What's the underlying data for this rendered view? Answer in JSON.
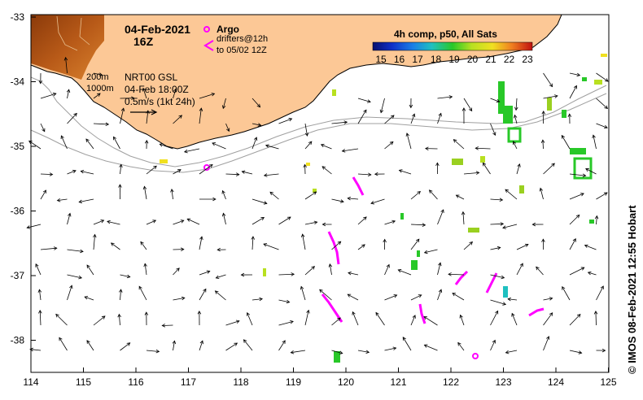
{
  "map": {
    "date": "04-Feb-2021",
    "hour": "16Z",
    "legend": {
      "argo_label": "Argo",
      "drifters_line1": "drifters@12h",
      "drifters_line2": "to 05/02 12Z"
    },
    "contours": {
      "c200": "200m",
      "c1000": "1000m"
    },
    "product": {
      "line1": "NRT00 GSL",
      "line2": "04-Feb 18:00Z",
      "scale": "0.5m/s (1kt 24h)"
    },
    "colorbar": {
      "title": "4h comp, p50, All Sats",
      "ticks": [
        "15",
        "16",
        "17",
        "18",
        "19",
        "20",
        "21",
        "22",
        "23"
      ]
    },
    "credit": "© IMOS 08-Feb-2021 12:55 Hobart",
    "lon_labels": [
      "114",
      "115",
      "116",
      "117",
      "118",
      "119",
      "120",
      "121",
      "122",
      "123",
      "124",
      "125"
    ],
    "lat_labels": [
      "-33",
      "-34",
      "-35",
      "-36",
      "-37",
      "-38"
    ],
    "colors": {
      "land": "#fcc896",
      "argo": "#ff00ff",
      "drifter": "#ff00ff",
      "arrow": "#000000",
      "contour": "#a0a0a0"
    }
  }
}
